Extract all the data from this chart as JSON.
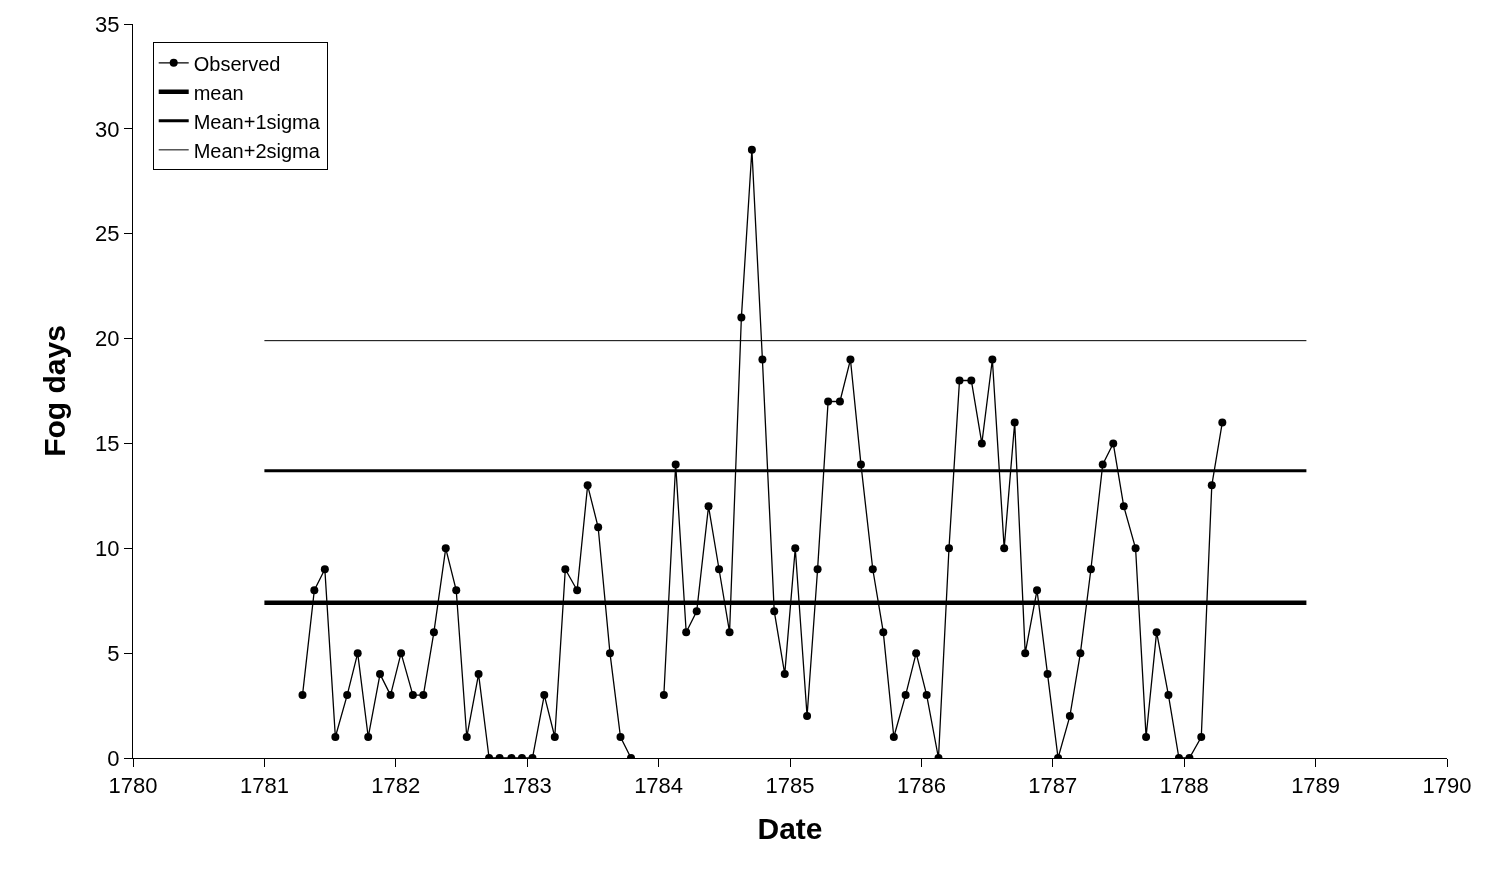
{
  "chart_data": {
    "type": "line",
    "xlabel": "Date",
    "ylabel": "Fog days",
    "xlim": [
      1780,
      1790
    ],
    "xticks": [
      1780,
      1781,
      1782,
      1783,
      1784,
      1785,
      1786,
      1787,
      1788,
      1789,
      1790
    ],
    "ylim": [
      0,
      35
    ],
    "yticks": [
      0,
      5,
      10,
      15,
      20,
      25,
      30,
      35
    ],
    "grid": false,
    "legend": "top left",
    "series": [
      {
        "name": "Observed",
        "color": "#000000",
        "marker": "circle",
        "x": [
          1781.29,
          1781.38,
          1781.46,
          1781.54,
          1781.63,
          1781.71,
          1781.79,
          1781.88,
          1781.96,
          1782.04,
          1782.13,
          1782.21,
          1782.29,
          1782.38,
          1782.46,
          1782.54,
          1782.63,
          1782.71,
          1782.79,
          1782.88,
          1782.96,
          1783.04,
          1783.13,
          1783.21,
          1783.29,
          1783.38,
          1783.46,
          1783.54,
          1783.63,
          1783.71,
          1783.79,
          1783.88,
          1783.96,
          1784.04,
          1784.13,
          1784.21,
          1784.29,
          1784.38,
          1784.46,
          1784.54,
          1784.63,
          1784.71,
          1784.79,
          1784.88,
          1784.96,
          1785.04,
          1785.13,
          1785.21,
          1785.29,
          1785.38,
          1785.46,
          1785.54,
          1785.63,
          1785.71,
          1785.79,
          1785.88,
          1785.96,
          1786.04,
          1786.13,
          1786.21,
          1786.29,
          1786.38,
          1786.46,
          1786.54,
          1786.63,
          1786.71,
          1786.79,
          1786.88,
          1786.96,
          1787.04,
          1787.13,
          1787.21,
          1787.29,
          1787.38,
          1787.46,
          1787.54,
          1787.63,
          1787.71,
          1787.79,
          1787.88,
          1787.96,
          1788.04,
          1788.13,
          1788.21,
          1788.29
        ],
        "values": [
          3,
          8,
          9,
          1,
          3,
          5,
          1,
          4,
          3,
          5,
          3,
          3,
          6,
          10,
          8,
          1,
          4,
          0,
          0,
          0,
          0,
          0,
          3,
          1,
          9,
          8,
          13,
          11,
          5,
          1,
          0,
          null,
          null,
          3,
          14,
          6,
          7,
          12,
          9,
          6,
          21,
          29,
          19,
          7,
          4,
          10,
          2,
          9,
          17,
          17,
          19,
          14,
          9,
          6,
          1,
          3,
          5,
          3,
          0,
          10,
          18,
          18,
          15,
          19,
          10,
          16,
          5,
          8,
          4,
          0,
          2,
          5,
          9,
          14,
          15,
          12,
          10,
          1,
          6,
          3,
          0,
          0,
          1,
          13,
          16
        ]
      },
      {
        "name": "mean",
        "color": "#000000",
        "marker": "none",
        "x": [
          1781.0,
          1788.93
        ],
        "values": [
          7.4,
          7.4
        ]
      },
      {
        "name": "Mean+1sigma",
        "color": "#000000",
        "marker": "none",
        "x": [
          1781.0,
          1788.93
        ],
        "values": [
          13.7,
          13.7
        ]
      },
      {
        "name": "Mean+2sigma",
        "color": "#000000",
        "marker": "none",
        "x": [
          1781.0,
          1788.93
        ],
        "values": [
          19.9,
          19.9
        ]
      }
    ]
  }
}
